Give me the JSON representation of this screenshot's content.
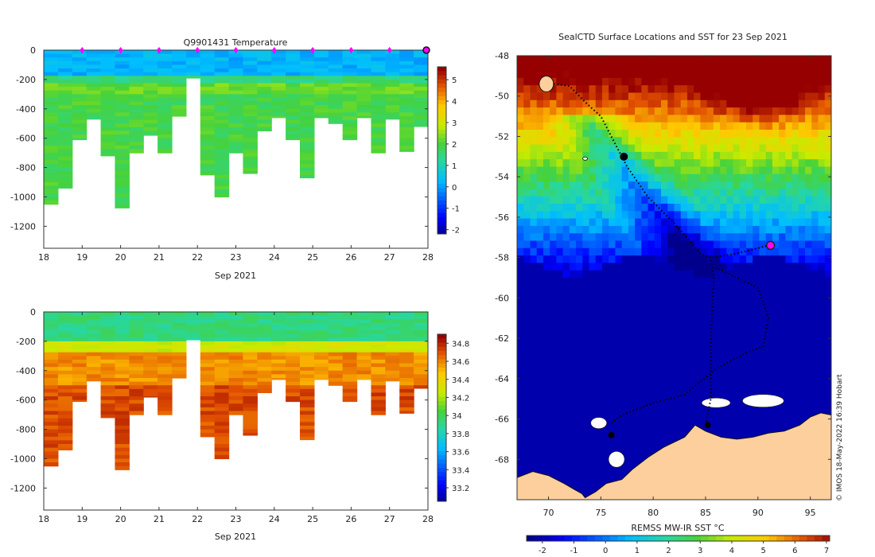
{
  "chart_data": [
    {
      "type": "heatmap",
      "title": "Q9901431  Temperature",
      "xlabel": "Sep 2021",
      "ylabel": "",
      "x_ticks": [
        "18",
        "19",
        "20",
        "21",
        "22",
        "23",
        "24",
        "25",
        "26",
        "27",
        "28"
      ],
      "xlim": [
        18,
        28
      ],
      "y_ticks": [
        "0",
        "-200",
        "-400",
        "-600",
        "-800",
        "-1000",
        "-1200"
      ],
      "ylim": [
        -1350,
        0
      ],
      "colorbar_ticks": [
        "5",
        "4",
        "3",
        "2",
        "1",
        "0",
        "-1",
        "-2"
      ],
      "colorbar_range": [
        -2.2,
        5.6
      ],
      "surface_markers_days": [
        19,
        20,
        21,
        22,
        23,
        24,
        25,
        26,
        27
      ],
      "last_profile_marker_day": 28,
      "profile_max_depth_m": [
        -1050,
        -940,
        -610,
        -470,
        -720,
        -1075,
        -700,
        -580,
        -700,
        -450,
        -190,
        -850,
        -1000,
        -700,
        -840,
        -550,
        -460,
        -610,
        -870,
        -460,
        -500,
        -610,
        -460,
        -700,
        -470,
        -690,
        -520
      ],
      "temperature_layers_c": [
        {
          "top": 0,
          "bottom": -180,
          "value": 0.3
        },
        {
          "top": -180,
          "bottom": -230,
          "value": 1.6
        },
        {
          "top": -230,
          "bottom": -300,
          "value": 2.3
        },
        {
          "top": -300,
          "bottom": -1100,
          "value": 2.0
        }
      ]
    },
    {
      "type": "heatmap",
      "title": "",
      "xlabel": "Sep 2021",
      "ylabel": "",
      "x_ticks": [
        "18",
        "19",
        "20",
        "21",
        "22",
        "23",
        "24",
        "25",
        "26",
        "27",
        "28"
      ],
      "xlim": [
        18,
        28
      ],
      "y_ticks": [
        "0",
        "-200",
        "-400",
        "-600",
        "-800",
        "-1000",
        "-1200"
      ],
      "ylim": [
        -1350,
        0
      ],
      "colorbar_ticks": [
        "34.8",
        "34.6",
        "34.4",
        "34.2",
        "34",
        "33.8",
        "33.6",
        "33.4",
        "33.2"
      ],
      "colorbar_range": [
        33.05,
        34.9
      ],
      "profile_max_depth_m": [
        -1050,
        -940,
        -610,
        -470,
        -720,
        -1075,
        -700,
        -580,
        -700,
        -450,
        -190,
        -850,
        -1000,
        -700,
        -840,
        -550,
        -460,
        -610,
        -870,
        -460,
        -500,
        -610,
        -460,
        -700,
        -470,
        -690,
        -520
      ],
      "salinity_layers": [
        {
          "top": 0,
          "bottom": -190,
          "value": 33.95
        },
        {
          "top": -190,
          "bottom": -280,
          "value": 34.3
        },
        {
          "top": -280,
          "bottom": -500,
          "value": 34.6
        },
        {
          "top": -500,
          "bottom": -1100,
          "value": 34.73
        }
      ]
    },
    {
      "type": "heatmap",
      "title": "SealCTD Surface Locations and SST for 23 Sep 2021",
      "xlabel": "",
      "ylabel": "",
      "x_ticks": [
        "70",
        "75",
        "80",
        "85",
        "90",
        "95"
      ],
      "xlim": [
        67,
        97
      ],
      "y_ticks": [
        "-48",
        "-50",
        "-52",
        "-54",
        "-56",
        "-58",
        "-60",
        "-62",
        "-64",
        "-66",
        "-68"
      ],
      "ylim": [
        -70,
        -48
      ],
      "colorbar_label": "REMSS MW-IR SST °C",
      "colorbar_ticks": [
        "-2",
        "-1",
        "0",
        "1",
        "2",
        "3",
        "4",
        "5",
        "6",
        "7"
      ],
      "colorbar_range": [
        -2.5,
        7.1
      ],
      "credit": "© IMOS 18-May-2022 16:39 Hobart",
      "latest_position": {
        "lon": 91.2,
        "lat": -57.4
      },
      "track_lonlat": [
        [
          70.5,
          -49.4
        ],
        [
          72.0,
          -49.5
        ],
        [
          73.5,
          -50.3
        ],
        [
          75.0,
          -51.0
        ],
        [
          76.5,
          -52.5
        ],
        [
          77.5,
          -53.5
        ],
        [
          79.5,
          -55.0
        ],
        [
          82.0,
          -56.3
        ],
        [
          84.5,
          -57.8
        ],
        [
          85.5,
          -58.0
        ],
        [
          88.0,
          -57.8
        ],
        [
          91.0,
          -57.4
        ]
      ],
      "track2_lonlat": [
        [
          76.0,
          -66.2
        ],
        [
          77.0,
          -65.8
        ],
        [
          80.0,
          -65.2
        ],
        [
          83.0,
          -64.8
        ],
        [
          86.0,
          -63.5
        ],
        [
          89.0,
          -62.7
        ],
        [
          90.5,
          -62.4
        ],
        [
          91.0,
          -61.0
        ],
        [
          90.0,
          -59.5
        ],
        [
          88.0,
          -59.0
        ],
        [
          86.0,
          -58.5
        ]
      ],
      "track3_lonlat": [
        [
          85.0,
          -66.3
        ],
        [
          85.5,
          -65.0
        ],
        [
          85.5,
          -62.0
        ],
        [
          85.8,
          -59.0
        ],
        [
          85.5,
          -58.0
        ]
      ]
    }
  ]
}
